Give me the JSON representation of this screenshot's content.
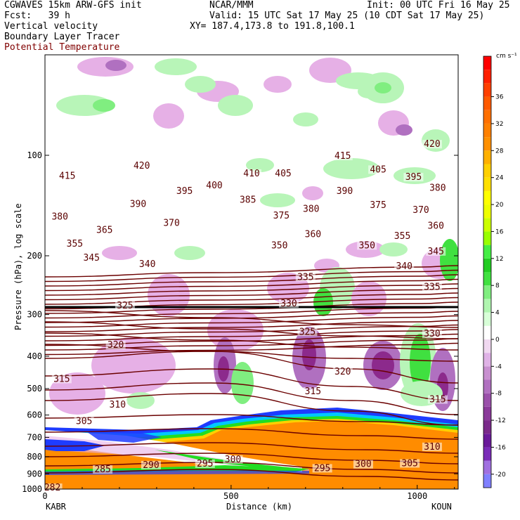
{
  "header": {
    "model": "CGWAVES 15km ARW-GFS init",
    "forecast": "Fcst:   39 h",
    "field1": "Vertical velocity",
    "field2": "Boundary Layer Tracer",
    "field3": "Potential Temperature",
    "org": "NCAR/MMM",
    "init": "Init: 00 UTC Fri 16 May 25",
    "valid": "Valid: 15 UTC Sat 17 May 25 (10 CDT Sat 17 May 25)",
    "xy": "XY= 187.4,173.8 to 191.8,100.1"
  },
  "colors": {
    "theta": "#6b0000",
    "tracer_orange": "#ff8c00",
    "tracer_blue": "#1e3cff",
    "tracer_green": "#22dd22",
    "up_light": "#b8f5b8",
    "down_light": "#e6b0e6",
    "down_dark": "#8c2a8c"
  },
  "chart_data": {
    "type": "heatmap",
    "title": "",
    "xlabel": "Distance (km)",
    "ylabel": "Pressure (hPa), log scale",
    "xlim": [
      0,
      1110
    ],
    "x_ticks": [
      {
        "value": 0,
        "label": "0"
      },
      {
        "value": 500,
        "label": "500"
      },
      {
        "value": 1000,
        "label": "1000"
      }
    ],
    "ylim": [
      1000,
      50
    ],
    "y_scale": "log",
    "y_ticks": [
      {
        "value": 100,
        "label": "100"
      },
      {
        "value": 200,
        "label": "200"
      },
      {
        "value": 300,
        "label": "300"
      },
      {
        "value": 400,
        "label": "400"
      },
      {
        "value": 500,
        "label": "500"
      },
      {
        "value": 600,
        "label": "600"
      },
      {
        "value": 700,
        "label": "700"
      },
      {
        "value": 800,
        "label": "800"
      },
      {
        "value": 900,
        "label": "900"
      },
      {
        "value": 1000,
        "label": "1000"
      }
    ],
    "endpoints": {
      "left": "KABR",
      "right": "KOUN"
    },
    "colorbar": {
      "units": "cm s⁻¹",
      "values": [
        -22,
        -20,
        -18,
        -16,
        -14,
        -12,
        -10,
        -8,
        -6,
        -4,
        -2,
        0,
        2,
        4,
        6,
        8,
        10,
        12,
        14,
        16,
        18,
        20,
        22,
        24,
        26,
        28,
        30,
        32,
        34,
        36,
        38,
        40
      ],
      "colors": [
        "#8080ff",
        "#a070e0",
        "#7a2cb8",
        "#6a1a9a",
        "#7a2a8a",
        "#8a3a9a",
        "#9a50aa",
        "#b070c0",
        "#c890d0",
        "#dfb2e6",
        "#f0d8f0",
        "#ffffff",
        "#d8ffd8",
        "#b0f5b0",
        "#80ee80",
        "#40e040",
        "#22cc22",
        "#44ee44",
        "#99ff00",
        "#ccff00",
        "#eeff00",
        "#ffff00",
        "#ffe000",
        "#ffd000",
        "#ffb000",
        "#ff9000",
        "#ff8000",
        "#ff7000",
        "#ff5a00",
        "#ff4000",
        "#ff2000",
        "#ff0000"
      ],
      "tick_labels": [
        "-20",
        "-16",
        "-12",
        "-8",
        "-4",
        "0",
        "4",
        "8",
        "12",
        "16",
        "20",
        "24",
        "28",
        "32",
        "36"
      ],
      "tick_values": [
        -20,
        -16,
        -12,
        -8,
        -4,
        0,
        4,
        8,
        12,
        16,
        20,
        24,
        28,
        32,
        36
      ]
    },
    "theta_labels": [
      {
        "text": "415",
        "x": 60,
        "p": 117
      },
      {
        "text": "420",
        "x": 260,
        "p": 109
      },
      {
        "text": "410",
        "x": 555,
        "p": 115
      },
      {
        "text": "405",
        "x": 640,
        "p": 115
      },
      {
        "text": "415",
        "x": 800,
        "p": 102
      },
      {
        "text": "405",
        "x": 895,
        "p": 112
      },
      {
        "text": "420",
        "x": 1040,
        "p": 94
      },
      {
        "text": "395",
        "x": 990,
        "p": 118
      },
      {
        "text": "380",
        "x": 1055,
        "p": 127
      },
      {
        "text": "390",
        "x": 250,
        "p": 142
      },
      {
        "text": "395",
        "x": 375,
        "p": 130
      },
      {
        "text": "400",
        "x": 455,
        "p": 125
      },
      {
        "text": "385",
        "x": 545,
        "p": 138
      },
      {
        "text": "390",
        "x": 805,
        "p": 130
      },
      {
        "text": "375",
        "x": 895,
        "p": 143
      },
      {
        "text": "370",
        "x": 1010,
        "p": 148
      },
      {
        "text": "380",
        "x": 40,
        "p": 155
      },
      {
        "text": "375",
        "x": 635,
        "p": 154
      },
      {
        "text": "370",
        "x": 340,
        "p": 162
      },
      {
        "text": "380",
        "x": 715,
        "p": 147
      },
      {
        "text": "360",
        "x": 1050,
        "p": 165
      },
      {
        "text": "365",
        "x": 160,
        "p": 170
      },
      {
        "text": "360",
        "x": 720,
        "p": 175
      },
      {
        "text": "355",
        "x": 80,
        "p": 187
      },
      {
        "text": "355",
        "x": 960,
        "p": 177
      },
      {
        "text": "350",
        "x": 630,
        "p": 189
      },
      {
        "text": "350",
        "x": 865,
        "p": 189
      },
      {
        "text": "345",
        "x": 1050,
        "p": 197
      },
      {
        "text": "345",
        "x": 125,
        "p": 206
      },
      {
        "text": "340",
        "x": 275,
        "p": 215
      },
      {
        "text": "340",
        "x": 965,
        "p": 218
      },
      {
        "text": "335",
        "x": 700,
        "p": 235
      },
      {
        "text": "335",
        "x": 1040,
        "p": 252
      },
      {
        "text": "325",
        "x": 215,
        "p": 286
      },
      {
        "text": "330",
        "x": 655,
        "p": 282
      },
      {
        "text": "325",
        "x": 705,
        "p": 343
      },
      {
        "text": "330",
        "x": 1040,
        "p": 348
      },
      {
        "text": "320",
        "x": 190,
        "p": 376
      },
      {
        "text": "320",
        "x": 800,
        "p": 452
      },
      {
        "text": "315",
        "x": 45,
        "p": 475
      },
      {
        "text": "315",
        "x": 720,
        "p": 517
      },
      {
        "text": "315",
        "x": 1055,
        "p": 547
      },
      {
        "text": "310",
        "x": 195,
        "p": 567
      },
      {
        "text": "305",
        "x": 105,
        "p": 636
      },
      {
        "text": "310",
        "x": 1040,
        "p": 758
      },
      {
        "text": "300",
        "x": 505,
        "p": 827
      },
      {
        "text": "300",
        "x": 855,
        "p": 855
      },
      {
        "text": "305",
        "x": 980,
        "p": 850
      },
      {
        "text": "295",
        "x": 430,
        "p": 852
      },
      {
        "text": "295",
        "x": 745,
        "p": 879
      },
      {
        "text": "290",
        "x": 285,
        "p": 860
      },
      {
        "text": "285",
        "x": 155,
        "p": 886
      },
      {
        "text": "282",
        "x": 20,
        "p": 1005
      }
    ]
  }
}
